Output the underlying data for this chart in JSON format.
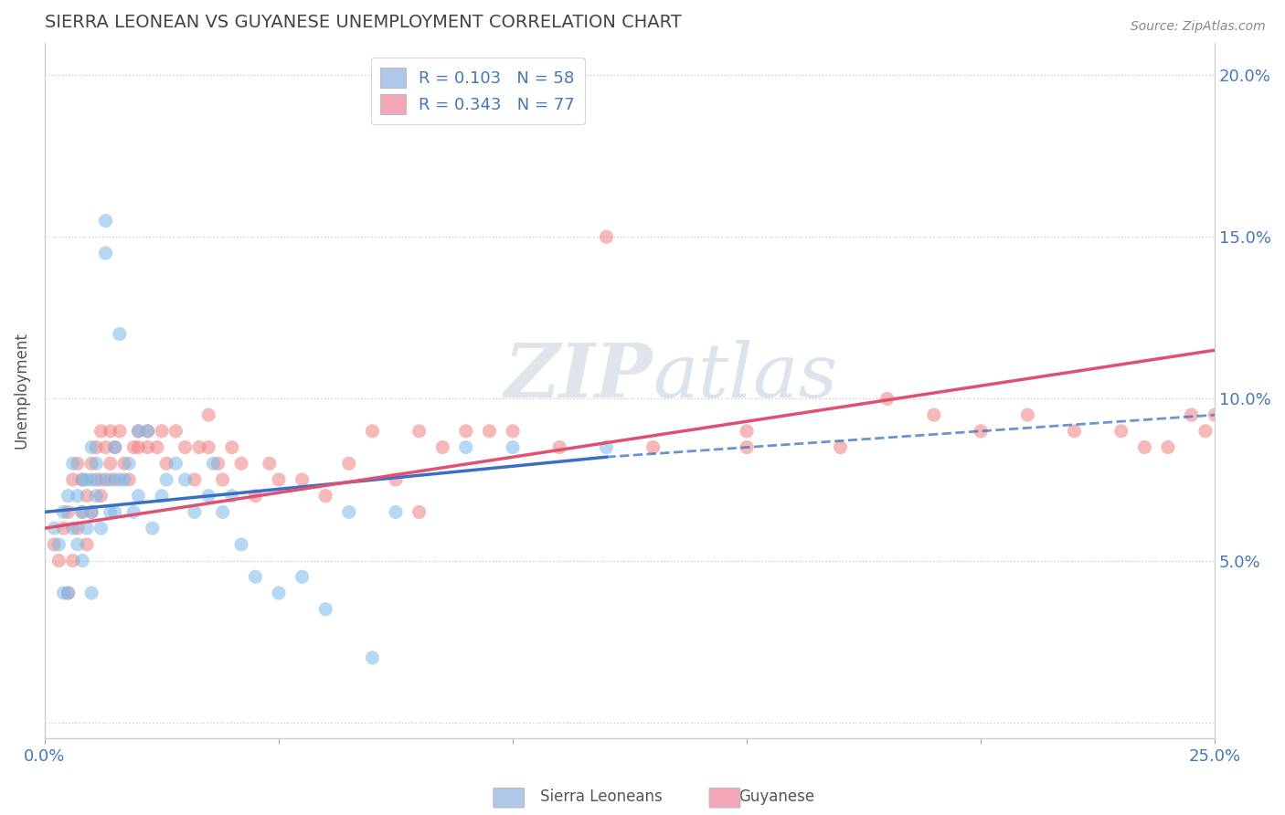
{
  "title": "SIERRA LEONEAN VS GUYANESE UNEMPLOYMENT CORRELATION CHART",
  "source": "Source: ZipAtlas.com",
  "ylabel": "Unemployment",
  "xlim": [
    0.0,
    0.25
  ],
  "ylim": [
    -0.005,
    0.21
  ],
  "ytick_vals": [
    0.0,
    0.05,
    0.1,
    0.15,
    0.2
  ],
  "ytick_labels_left": [
    "",
    "",
    "",
    "",
    ""
  ],
  "ytick_labels_right": [
    "",
    "5.0%",
    "10.0%",
    "15.0%",
    "20.0%"
  ],
  "xtick_vals": [
    0.0,
    0.05,
    0.1,
    0.15,
    0.2,
    0.25
  ],
  "xtick_labels": [
    "0.0%",
    "",
    "",
    "",
    "",
    "25.0%"
  ],
  "legend_entries": [
    {
      "label": "R = 0.103   N = 58",
      "color": "#aec6e8"
    },
    {
      "label": "R = 0.343   N = 77",
      "color": "#f4a7b9"
    }
  ],
  "sierra_color": "#7db8e8",
  "guyanese_color": "#f08080",
  "sierra_line_color": "#3a6fc4",
  "guyanese_line_color": "#e05070",
  "background_color": "#ffffff",
  "grid_color": "#cccccc",
  "tick_color": "#4477bb",
  "title_color": "#444444",
  "sierra_line_x0": 0.0,
  "sierra_line_y0": 0.065,
  "sierra_line_x1": 0.12,
  "sierra_line_y1": 0.082,
  "sierra_line_x2": 0.25,
  "sierra_line_y2": 0.095,
  "guyanese_line_x0": 0.0,
  "guyanese_line_y0": 0.06,
  "guyanese_line_x1": 0.25,
  "guyanese_line_y1": 0.115,
  "sierra_points_x": [
    0.002,
    0.003,
    0.004,
    0.004,
    0.005,
    0.005,
    0.006,
    0.006,
    0.007,
    0.007,
    0.008,
    0.008,
    0.008,
    0.009,
    0.009,
    0.01,
    0.01,
    0.01,
    0.01,
    0.011,
    0.011,
    0.012,
    0.012,
    0.013,
    0.013,
    0.014,
    0.014,
    0.015,
    0.015,
    0.016,
    0.016,
    0.017,
    0.018,
    0.019,
    0.02,
    0.02,
    0.022,
    0.023,
    0.025,
    0.026,
    0.028,
    0.03,
    0.032,
    0.035,
    0.036,
    0.038,
    0.04,
    0.042,
    0.045,
    0.05,
    0.055,
    0.06,
    0.065,
    0.07,
    0.075,
    0.09,
    0.1,
    0.12
  ],
  "sierra_points_y": [
    0.06,
    0.055,
    0.065,
    0.04,
    0.07,
    0.04,
    0.06,
    0.08,
    0.055,
    0.07,
    0.065,
    0.05,
    0.075,
    0.06,
    0.075,
    0.04,
    0.065,
    0.075,
    0.085,
    0.07,
    0.08,
    0.075,
    0.06,
    0.155,
    0.145,
    0.065,
    0.075,
    0.085,
    0.065,
    0.12,
    0.075,
    0.075,
    0.08,
    0.065,
    0.07,
    0.09,
    0.09,
    0.06,
    0.07,
    0.075,
    0.08,
    0.075,
    0.065,
    0.07,
    0.08,
    0.065,
    0.07,
    0.055,
    0.045,
    0.04,
    0.045,
    0.035,
    0.065,
    0.02,
    0.065,
    0.085,
    0.085,
    0.085
  ],
  "guyanese_points_x": [
    0.002,
    0.003,
    0.004,
    0.005,
    0.005,
    0.006,
    0.006,
    0.007,
    0.007,
    0.008,
    0.008,
    0.009,
    0.009,
    0.01,
    0.01,
    0.011,
    0.011,
    0.012,
    0.012,
    0.013,
    0.013,
    0.014,
    0.014,
    0.015,
    0.015,
    0.016,
    0.017,
    0.018,
    0.019,
    0.02,
    0.02,
    0.022,
    0.022,
    0.024,
    0.025,
    0.026,
    0.028,
    0.03,
    0.032,
    0.033,
    0.035,
    0.035,
    0.037,
    0.038,
    0.04,
    0.042,
    0.045,
    0.048,
    0.05,
    0.055,
    0.06,
    0.065,
    0.07,
    0.075,
    0.08,
    0.085,
    0.09,
    0.1,
    0.11,
    0.12,
    0.13,
    0.15,
    0.17,
    0.18,
    0.19,
    0.2,
    0.21,
    0.22,
    0.23,
    0.235,
    0.24,
    0.245,
    0.248,
    0.25,
    0.15,
    0.095,
    0.08
  ],
  "guyanese_points_y": [
    0.055,
    0.05,
    0.06,
    0.065,
    0.04,
    0.05,
    0.075,
    0.06,
    0.08,
    0.065,
    0.075,
    0.055,
    0.07,
    0.065,
    0.08,
    0.075,
    0.085,
    0.07,
    0.09,
    0.075,
    0.085,
    0.08,
    0.09,
    0.075,
    0.085,
    0.09,
    0.08,
    0.075,
    0.085,
    0.085,
    0.09,
    0.085,
    0.09,
    0.085,
    0.09,
    0.08,
    0.09,
    0.085,
    0.075,
    0.085,
    0.085,
    0.095,
    0.08,
    0.075,
    0.085,
    0.08,
    0.07,
    0.08,
    0.075,
    0.075,
    0.07,
    0.08,
    0.09,
    0.075,
    0.065,
    0.085,
    0.09,
    0.09,
    0.085,
    0.15,
    0.085,
    0.085,
    0.085,
    0.1,
    0.095,
    0.09,
    0.095,
    0.09,
    0.09,
    0.085,
    0.085,
    0.095,
    0.09,
    0.095,
    0.09,
    0.09,
    0.09
  ]
}
